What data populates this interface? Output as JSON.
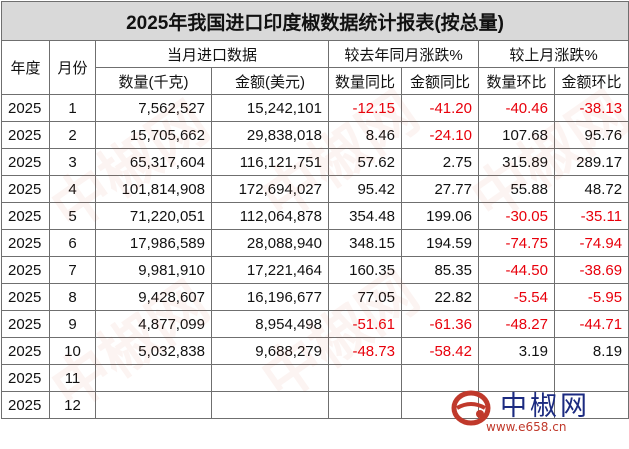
{
  "title": "2025年我国进口印度椒数据统计报表(按总量)",
  "headers": {
    "year": "年度",
    "month": "月份",
    "monthly_import": "当月进口数据",
    "yoy": "较去年同月涨跌%",
    "mom": "较上月涨跌%",
    "quantity": "数量(千克)",
    "amount": "金额(美元)",
    "qty_yoy": "数量同比",
    "amt_yoy": "金额同比",
    "qty_mom": "数量环比",
    "amt_mom": "金额环比"
  },
  "rows": [
    {
      "year": "2025",
      "month": "1",
      "qty": "7,562,527",
      "amt": "15,242,101",
      "qty_yoy": "-12.15",
      "amt_yoy": "-41.20",
      "qty_mom": "-40.46",
      "amt_mom": "-38.13"
    },
    {
      "year": "2025",
      "month": "2",
      "qty": "15,705,662",
      "amt": "29,838,018",
      "qty_yoy": "8.46",
      "amt_yoy": "-24.10",
      "qty_mom": "107.68",
      "amt_mom": "95.76"
    },
    {
      "year": "2025",
      "month": "3",
      "qty": "65,317,604",
      "amt": "116,121,751",
      "qty_yoy": "57.62",
      "amt_yoy": "2.75",
      "qty_mom": "315.89",
      "amt_mom": "289.17"
    },
    {
      "year": "2025",
      "month": "4",
      "qty": "101,814,908",
      "amt": "172,694,027",
      "qty_yoy": "95.42",
      "amt_yoy": "27.77",
      "qty_mom": "55.88",
      "amt_mom": "48.72"
    },
    {
      "year": "2025",
      "month": "5",
      "qty": "71,220,051",
      "amt": "112,064,878",
      "qty_yoy": "354.48",
      "amt_yoy": "199.06",
      "qty_mom": "-30.05",
      "amt_mom": "-35.11"
    },
    {
      "year": "2025",
      "month": "6",
      "qty": "17,986,589",
      "amt": "28,088,940",
      "qty_yoy": "348.15",
      "amt_yoy": "194.59",
      "qty_mom": "-74.75",
      "amt_mom": "-74.94"
    },
    {
      "year": "2025",
      "month": "7",
      "qty": "9,981,910",
      "amt": "17,221,464",
      "qty_yoy": "160.35",
      "amt_yoy": "85.35",
      "qty_mom": "-44.50",
      "amt_mom": "-38.69"
    },
    {
      "year": "2025",
      "month": "8",
      "qty": "9,428,607",
      "amt": "16,196,677",
      "qty_yoy": "77.05",
      "amt_yoy": "22.82",
      "qty_mom": "-5.54",
      "amt_mom": "-5.95"
    },
    {
      "year": "2025",
      "month": "9",
      "qty": "4,877,099",
      "amt": "8,954,498",
      "qty_yoy": "-51.61",
      "amt_yoy": "-61.36",
      "qty_mom": "-48.27",
      "amt_mom": "-44.71"
    },
    {
      "year": "2025",
      "month": "10",
      "qty": "5,032,838",
      "amt": "9,688,279",
      "qty_yoy": "-48.73",
      "amt_yoy": "-58.42",
      "qty_mom": "3.19",
      "amt_mom": "8.19"
    },
    {
      "year": "2025",
      "month": "11",
      "qty": "",
      "amt": "",
      "qty_yoy": "",
      "amt_yoy": "",
      "qty_mom": "",
      "amt_mom": ""
    },
    {
      "year": "2025",
      "month": "12",
      "qty": "",
      "amt": "",
      "qty_yoy": "",
      "amt_yoy": "",
      "qty_mom": "",
      "amt_mom": ""
    }
  ],
  "watermark": {
    "text": "中椒网",
    "logo_text": "中椒网",
    "logo_url": "www.e658.cn"
  },
  "colors": {
    "negative": "#e8000b",
    "title_bg": "#d9d9d9",
    "logo_blue": "#1b2a80",
    "logo_red": "#c0392b"
  }
}
